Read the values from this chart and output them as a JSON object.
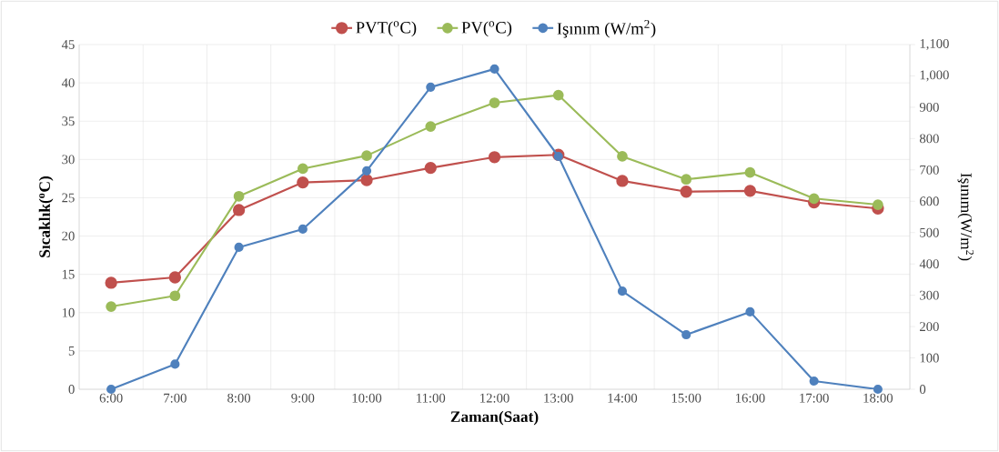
{
  "chart_data": {
    "type": "line",
    "xlabel": "Zaman(Saat)",
    "ylabel": "Sıcaklık($^{o}$C)",
    "y2label": "Işınım(W/m$^{2}$)",
    "categories": [
      "6:00",
      "7:00",
      "8:00",
      "9:00",
      "10:00",
      "11:00",
      "12:00",
      "13:00",
      "14:00",
      "15:00",
      "16:00",
      "17:00",
      "18:00"
    ],
    "series": [
      {
        "name": "PVT($^{o}$C)",
        "color": "#c0504d",
        "values": [
          13.9,
          14.6,
          23.4,
          27.0,
          27.3,
          28.9,
          30.3,
          30.6,
          27.2,
          25.8,
          25.9,
          24.4,
          23.6
        ]
      },
      {
        "name": "PV($^{o}$C)",
        "color": "#9bbb59",
        "values": [
          10.8,
          12.2,
          25.2,
          28.8,
          30.5,
          34.3,
          37.4,
          38.4,
          30.4,
          27.4,
          28.3,
          24.9,
          24.1
        ]
      },
      {
        "name": "Işınım (W/m$^{2}$)",
        "color": "#4f81bd",
        "axis": "y2",
        "values": [
          0,
          80,
          453,
          511,
          697,
          964,
          1022,
          743,
          313,
          174,
          247,
          26,
          0
        ]
      }
    ],
    "ylim": [
      0,
      45
    ],
    "yticks": [
      0,
      5,
      10,
      15,
      20,
      25,
      30,
      35,
      40,
      45
    ],
    "y2lim": [
      0,
      1100
    ],
    "y2ticks": [
      0,
      100,
      200,
      300,
      400,
      500,
      600,
      700,
      800,
      900,
      {
        "value": 1000,
        "label": "1,000"
      },
      {
        "value": 1100,
        "label": "1,100"
      }
    ],
    "grid": true,
    "legend": "top",
    "marker": "circle",
    "line_style": "solid"
  }
}
